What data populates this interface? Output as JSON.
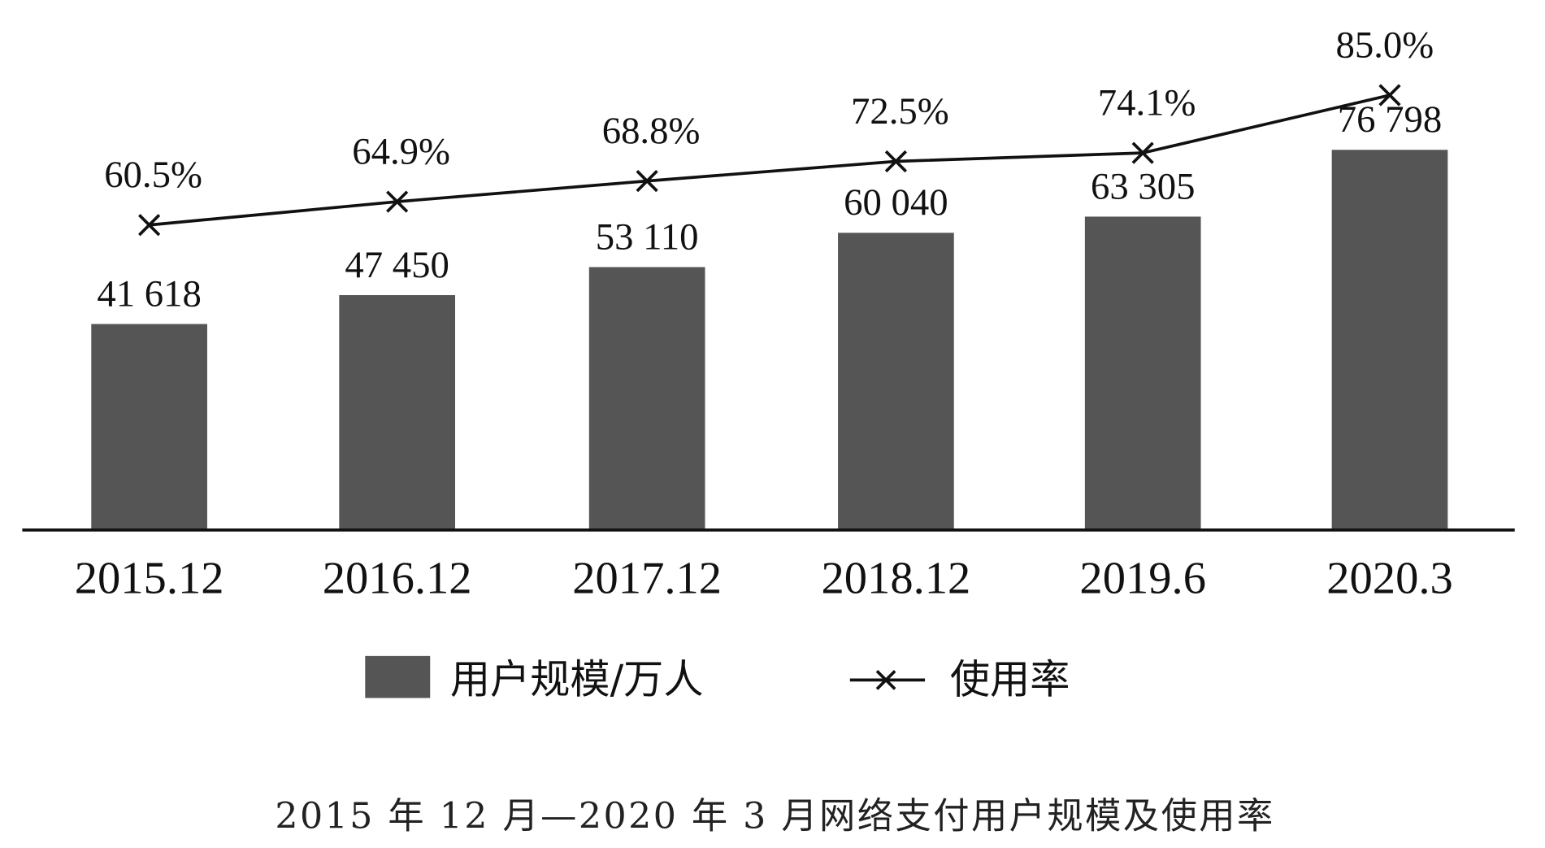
{
  "chart_data": {
    "type": "bar+line",
    "title": "2015 年 12 月—2020 年 3 月网络支付用户规模及使用率",
    "categories": [
      "2015.12",
      "2016.12",
      "2017.12",
      "2018.12",
      "2019.6",
      "2020.3"
    ],
    "series": [
      {
        "name": "用户规模/万人",
        "type": "bar",
        "color": "#555555",
        "values": [
          41618,
          47450,
          53110,
          60040,
          63305,
          76798
        ],
        "labels": [
          "41 618",
          "47 450",
          "53 110",
          "60 040",
          "63 305",
          "76 798"
        ]
      },
      {
        "name": "使用率",
        "type": "line",
        "marker": "x",
        "color": "#111111",
        "values": [
          60.5,
          64.9,
          68.8,
          72.5,
          74.1,
          85.0
        ],
        "labels": [
          "60.5%",
          "64.9%",
          "68.8%",
          "72.5%",
          "74.1%",
          "85.0%"
        ]
      }
    ],
    "xlabel": "",
    "ylabel": "",
    "grid": false,
    "legend": "bottom"
  }
}
